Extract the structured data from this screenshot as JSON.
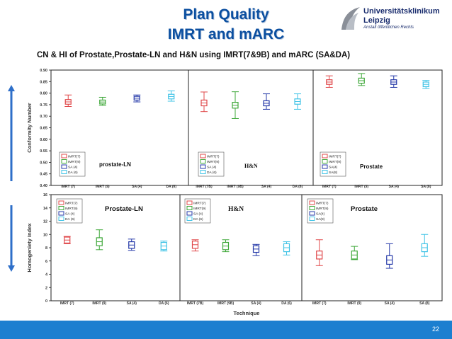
{
  "slide": {
    "title_line1": "Plan Quality",
    "title_line2": "IMRT and mARC",
    "subtitle": "CN & HI of Prostate,Prostate-LN and H&N using IMRT(7&9B) and mARC (SA&DA)",
    "page_number": "22"
  },
  "logo": {
    "line1": "Universitätsklinikum",
    "line2": "Leipzig",
    "line3": "Anstalt öffentlichen Rechts"
  },
  "colors": {
    "title": "#0b4fa0",
    "footer": "#1c7fd0",
    "arrow": "#2e6fc9",
    "imrt7": "#e0484a",
    "imrt9": "#3fa83a",
    "sa": "#2438a8",
    "da": "#3fc3e6"
  },
  "chart_data": [
    {
      "type": "box",
      "name": "conformity",
      "ylabel": "Conformity Number",
      "ylim": [
        0.4,
        0.9
      ],
      "yticks": [
        "0.40",
        "0.45",
        "0.50",
        "0.55",
        "0.60",
        "0.65",
        "0.70",
        "0.75",
        "0.80",
        "0.85",
        "0.90"
      ],
      "panels": [
        {
          "label": "prostate-LN",
          "categories": [
            "IMRT (7)",
            "IMRT (9)",
            "SA (4)",
            "DA (6)"
          ],
          "legend": [
            "IMRT(7)",
            "IMRT(9)",
            "SA (4)",
            "DA (6)"
          ],
          "boxes": [
            {
              "q1": 0.752,
              "q3": 0.772,
              "min": 0.742,
              "max": 0.792
            },
            {
              "q1": 0.753,
              "q3": 0.77,
              "min": 0.747,
              "max": 0.782
            },
            {
              "q1": 0.77,
              "q3": 0.786,
              "min": 0.762,
              "max": 0.792
            },
            {
              "q1": 0.775,
              "q3": 0.795,
              "min": 0.765,
              "max": 0.81
            }
          ]
        },
        {
          "label": "H&N",
          "categories": [
            "IMRT (7B)",
            "IMRT (9B)",
            "SA (4)",
            "DA (6)"
          ],
          "legend": [
            "IMRT(7)",
            "IMRT(9)",
            "SA (4)",
            "DA (6)"
          ],
          "boxes": [
            {
              "q1": 0.745,
              "q3": 0.77,
              "min": 0.72,
              "max": 0.805
            },
            {
              "q1": 0.735,
              "q3": 0.76,
              "min": 0.69,
              "max": 0.806
            },
            {
              "q1": 0.745,
              "q3": 0.767,
              "min": 0.73,
              "max": 0.797
            },
            {
              "q1": 0.752,
              "q3": 0.775,
              "min": 0.73,
              "max": 0.797
            }
          ]
        },
        {
          "label": "Prostate",
          "categories": [
            "IMRT (7)",
            "IMRT (9)",
            "SA (4)",
            "SA (8)"
          ],
          "legend": [
            "IMRT(7)",
            "IMRT(9)",
            "SA(4)",
            "SA(8)"
          ],
          "boxes": [
            {
              "q1": 0.838,
              "q3": 0.858,
              "min": 0.825,
              "max": 0.875
            },
            {
              "q1": 0.843,
              "q3": 0.865,
              "min": 0.833,
              "max": 0.885
            },
            {
              "q1": 0.838,
              "q3": 0.858,
              "min": 0.825,
              "max": 0.875
            },
            {
              "q1": 0.828,
              "q3": 0.848,
              "min": 0.82,
              "max": 0.855
            }
          ]
        }
      ]
    },
    {
      "type": "box",
      "name": "homogeneity",
      "ylabel": "Homogeniety Index",
      "xlabel": "Technique",
      "ylim": [
        0,
        16
      ],
      "yticks": [
        "0",
        "2",
        "4",
        "6",
        "8",
        "10",
        "12",
        "14",
        "16"
      ],
      "panels": [
        {
          "label": "Prostate-LN",
          "categories": [
            "IMRT (7)",
            "IMRT (9)",
            "SA (4)",
            "DA (6)"
          ],
          "legend": [
            "IMRT(7)",
            "IMRT(9)",
            "SA (4)",
            "DA (6)"
          ],
          "boxes": [
            {
              "q1": 8.7,
              "q3": 9.6,
              "min": 8.6,
              "max": 9.7
            },
            {
              "q1": 8.3,
              "q3": 9.5,
              "min": 7.7,
              "max": 10.7
            },
            {
              "q1": 7.9,
              "q3": 8.9,
              "min": 7.6,
              "max": 9.3
            },
            {
              "q1": 7.7,
              "q3": 8.8,
              "min": 7.5,
              "max": 9.0
            }
          ]
        },
        {
          "label": "H&N",
          "categories": [
            "IMRT (7B)",
            "IMRT (9B)",
            "SA (4)",
            "DA (6)"
          ],
          "legend": [
            "IMRT(7)",
            "IMRT(9)",
            "SA (4)",
            "DA (6)"
          ],
          "boxes": [
            {
              "q1": 7.9,
              "q3": 9.0,
              "min": 7.5,
              "max": 9.2
            },
            {
              "q1": 7.7,
              "q3": 8.8,
              "min": 7.4,
              "max": 9.2
            },
            {
              "q1": 7.3,
              "q3": 8.3,
              "min": 6.8,
              "max": 8.5
            },
            {
              "q1": 7.4,
              "q3": 8.6,
              "min": 6.9,
              "max": 8.9
            }
          ]
        },
        {
          "label": "Prostate",
          "categories": [
            "IMRT (7)",
            "IMRT (9)",
            "SA (4)",
            "SA (8)"
          ],
          "legend": [
            "IMRT(7)",
            "IMRT(9)",
            "SA(4)",
            "SA(8)"
          ],
          "boxes": [
            {
              "q1": 6.3,
              "q3": 7.5,
              "min": 5.3,
              "max": 9.2
            },
            {
              "q1": 6.3,
              "q3": 7.5,
              "min": 6.2,
              "max": 8.2
            },
            {
              "q1": 5.5,
              "q3": 6.8,
              "min": 4.9,
              "max": 8.6
            },
            {
              "q1": 7.4,
              "q3": 8.6,
              "min": 6.7,
              "max": 10.0
            }
          ]
        }
      ]
    }
  ]
}
